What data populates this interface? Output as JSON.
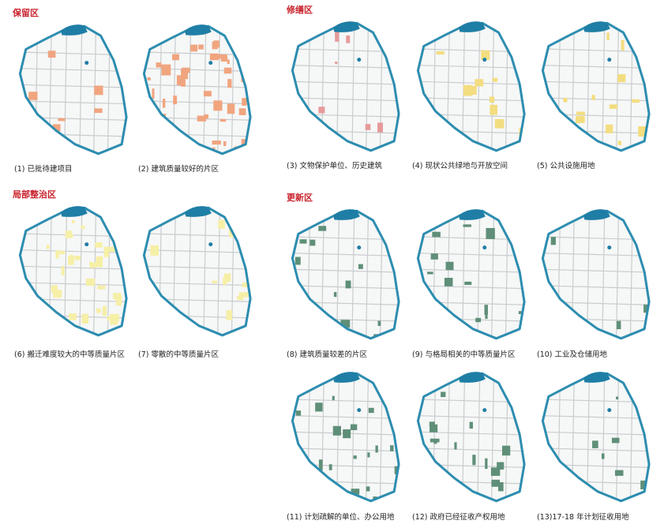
{
  "sections": [
    {
      "title": "保留区",
      "panels": [
        {
          "caption": "(1) 已批待建项目",
          "color": "#f0a57f"
        },
        {
          "caption": "(2) 建筑质量较好的片区",
          "color": "#f0a57f"
        }
      ]
    },
    {
      "title": "修缮区",
      "panels": [
        {
          "caption": "(3) 文物保护单位、历史建筑",
          "color": "#e69a9a"
        },
        {
          "caption": "(4) 现状公共绿地与开放空间",
          "color": "#f3dd80"
        },
        {
          "caption": "(5) 公共设施用地",
          "color": "#f3dd80"
        }
      ]
    },
    {
      "title": "局部整治区",
      "panels": [
        {
          "caption": "(6) 搬迁难度较大的中等质量片区",
          "color": "#f6efa6"
        },
        {
          "caption": "(7) 零散的中等质量片区",
          "color": "#f6efa6"
        }
      ]
    },
    {
      "title": "更新区",
      "panels": [
        {
          "caption": "(8) 建筑质量较差的片区",
          "color": "#5f8f78"
        },
        {
          "caption": "(9) 与格局相关的中等质量片区",
          "color": "#5f8f78"
        },
        {
          "caption": "(10) 工业及仓储用地",
          "color": "#5f8f78"
        },
        {
          "caption": "(11) 计划疏解的单位、办公用地",
          "color": "#5f8f78"
        },
        {
          "caption": "(12) 政府已经征收产权用地",
          "color": "#5f8f78"
        },
        {
          "caption": "(13)17-18 年计划征收用地",
          "color": "#5f8f78"
        }
      ]
    }
  ]
}
